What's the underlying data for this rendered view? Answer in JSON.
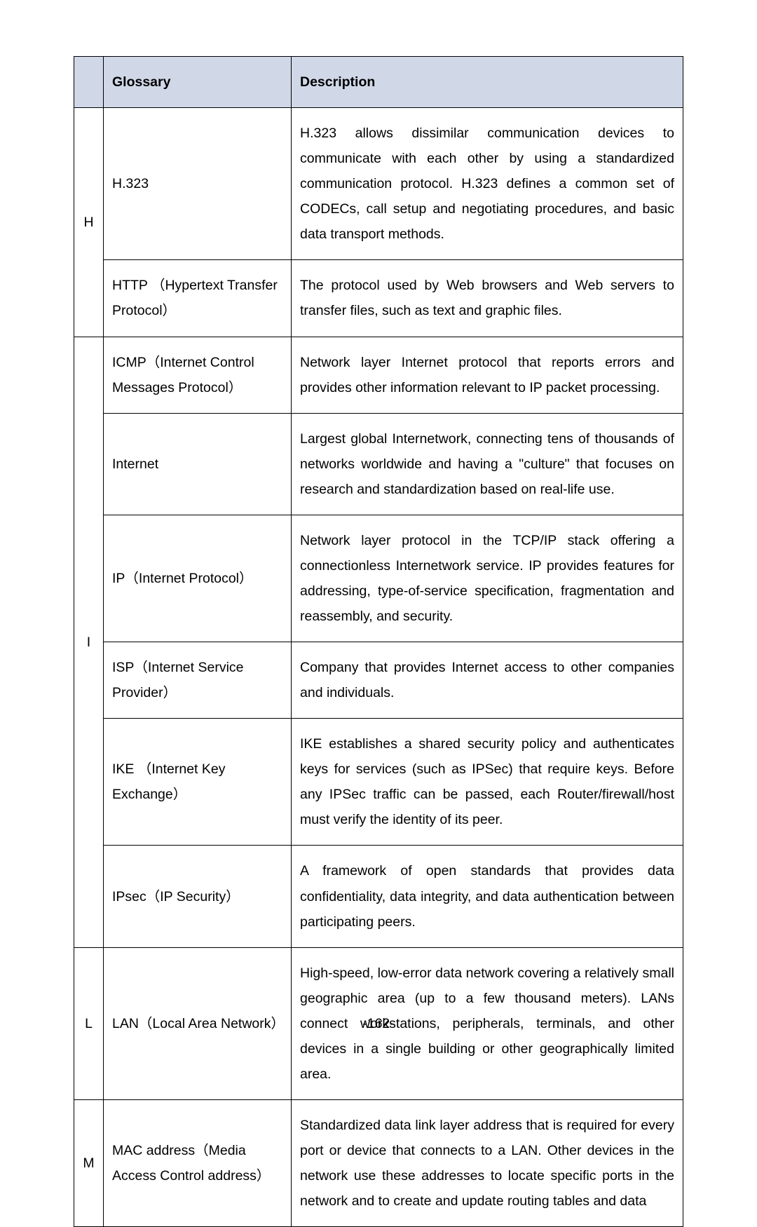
{
  "header": {
    "glossary_label": "Glossary",
    "description_label": "Description"
  },
  "rows": {
    "h": {
      "letter": "H",
      "h323": {
        "term": "H.323",
        "desc": "H.323 allows dissimilar communication devices to communicate with each other by using a standardized communication protocol. H.323 defines a common set of CODECs, call setup and negotiating procedures, and basic data transport methods."
      },
      "http": {
        "term": "HTTP （Hypertext Transfer Protocol）",
        "desc": "The protocol used by Web browsers and Web servers to transfer files, such as text and graphic files."
      }
    },
    "i": {
      "letter": "I",
      "icmp": {
        "term": "ICMP（Internet Control Messages Protocol）",
        "desc": "Network layer Internet protocol that reports errors and provides other information relevant to IP packet processing."
      },
      "internet": {
        "term": "Internet",
        "desc": "Largest global Internetwork, connecting tens of thousands of networks worldwide and having a \"culture\" that focuses on research and standardization based on real-life use."
      },
      "ip": {
        "term": "IP（Internet Protocol）",
        "desc": "Network layer protocol in the TCP/IP stack offering a connectionless Internetwork service. IP provides features for addressing, type-of-service specification, fragmentation and reassembly, and security."
      },
      "isp": {
        "term": "ISP（Internet Service Provider）",
        "desc": "Company that provides Internet access to other companies and individuals."
      },
      "ike": {
        "term": "IKE （Internet Key Exchange）",
        "desc": "IKE establishes a shared security policy and authenticates keys for services (such as IPSec) that require keys. Before any IPSec traffic can be passed, each Router/firewall/host must verify the identity of its peer."
      },
      "ipsec": {
        "term": "IPsec（IP Security）",
        "desc": "A framework of open standards that provides data confidentiality, data integrity, and data authentication between participating peers."
      }
    },
    "l": {
      "letter": "L",
      "lan": {
        "term": "LAN（Local Area Network）",
        "desc": "High-speed, low-error data network covering a relatively small geographic area (up to a few thousand meters). LANs connect workstations, peripherals, terminals, and other devices in a single building or other geographically limited area."
      }
    },
    "m": {
      "letter": "M",
      "mac": {
        "term": "MAC address（Media Access Control address）",
        "desc": "Standardized data link layer address that is required for every port or device that connects to a LAN. Other devices in the network use these addresses to locate specific ports in the network and to create and update routing tables and data"
      }
    }
  },
  "footer": "-162-"
}
